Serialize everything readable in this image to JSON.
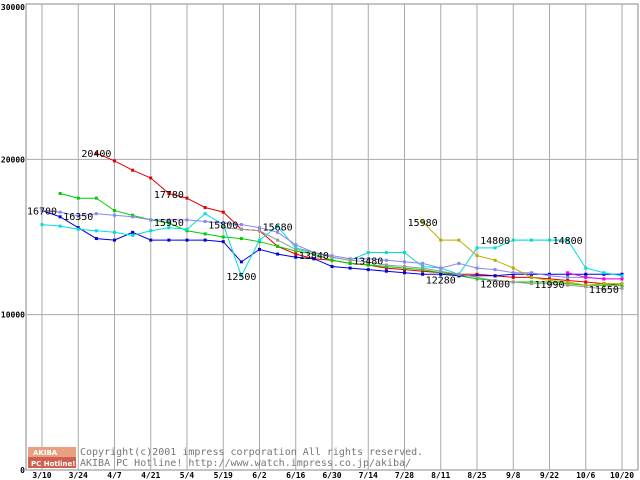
{
  "chart_data": {
    "type": "line",
    "title": "",
    "xlabel": "",
    "ylabel": "",
    "ylim": [
      0,
      30000
    ],
    "y_ticks": [
      0,
      10000,
      20000,
      30000
    ],
    "x": [
      "3/10",
      "3/17",
      "3/24",
      "3/31",
      "4/7",
      "4/14",
      "4/21",
      "4/28",
      "5/4",
      "5/12",
      "5/19",
      "5/26",
      "6/2",
      "6/9",
      "6/16",
      "6/23",
      "6/30",
      "7/7",
      "7/14",
      "7/21",
      "7/28",
      "8/4",
      "8/11",
      "8/18",
      "8/25",
      "9/1",
      "9/8",
      "9/15",
      "9/22",
      "9/29",
      "10/6",
      "10/13",
      "10/20"
    ],
    "x_tick_labels": [
      "3/10",
      "3/24",
      "4/7",
      "4/21",
      "5/4",
      "5/19",
      "6/2",
      "6/16",
      "6/30",
      "7/14",
      "7/28",
      "8/11",
      "8/25",
      "9/8",
      "9/22",
      "10/6",
      "10/20"
    ],
    "grid": true,
    "series": [
      {
        "name": "red",
        "color": "#e00000",
        "dashed": false,
        "values": [
          null,
          null,
          null,
          20400,
          19900,
          19300,
          18800,
          17800,
          17500,
          16900,
          16600,
          15500,
          15400,
          14400,
          13900,
          13600,
          13500,
          13300,
          13200,
          13000,
          12900,
          12800,
          12700,
          12600,
          12600,
          12500,
          12400,
          12400,
          12300,
          12200,
          12100,
          12000,
          11900
        ]
      },
      {
        "name": "green",
        "color": "#00cc00",
        "dashed": false,
        "values": [
          null,
          17800,
          17500,
          17500,
          16700,
          16400,
          16100,
          15900,
          15400,
          15200,
          15000,
          14900,
          14700,
          14400,
          14100,
          13900,
          13500,
          13300,
          13200,
          13100,
          13000,
          12900,
          12700,
          12500,
          12300,
          12200,
          12100,
          12100,
          12100,
          12000,
          11900,
          11900,
          11900
        ]
      },
      {
        "name": "blue",
        "color": "#0000dd",
        "dashed": false,
        "values": [
          16700,
          16300,
          15600,
          14900,
          14800,
          15300,
          14800,
          14800,
          14800,
          14800,
          14700,
          13400,
          14200,
          13900,
          13700,
          13600,
          13100,
          13000,
          12900,
          12800,
          12700,
          12600,
          12600,
          12500,
          12500,
          12500,
          12600,
          12600,
          12600,
          12600,
          12600,
          12600,
          12600
        ]
      },
      {
        "name": "cyan",
        "color": "#00dddd",
        "dashed": false,
        "values": [
          15800,
          15700,
          15500,
          15400,
          15300,
          15100,
          15400,
          15600,
          15500,
          16500,
          15800,
          12500,
          14800,
          15680,
          14300,
          14000,
          13700,
          13500,
          14000,
          14000,
          14000,
          13100,
          13000,
          12600,
          14300,
          14300,
          14800,
          14800,
          14800,
          14800,
          13000,
          12700,
          12500
        ]
      },
      {
        "name": "cyan-dotted",
        "color": "#00cccc",
        "dashed": true,
        "values": [
          null,
          null,
          null,
          null,
          null,
          null,
          null,
          null,
          null,
          null,
          null,
          null,
          null,
          null,
          null,
          null,
          null,
          null,
          null,
          null,
          null,
          null,
          null,
          null,
          null,
          null,
          14800,
          14800,
          14800,
          14800,
          null,
          null,
          null
        ]
      },
      {
        "name": "lavender",
        "color": "#8888ee",
        "dashed": false,
        "values": [
          16700,
          16600,
          16350,
          16500,
          16400,
          16300,
          16100,
          16100,
          16100,
          16000,
          15900,
          15800,
          15600,
          15300,
          14500,
          14000,
          13800,
          13600,
          13600,
          13500,
          13400,
          13300,
          13000,
          13300,
          13000,
          12900,
          12700,
          12700,
          12500,
          12400,
          12400,
          12300,
          12300
        ]
      },
      {
        "name": "olive",
        "color": "#bbaa00",
        "dashed": false,
        "values": [
          null,
          null,
          null,
          null,
          null,
          null,
          null,
          null,
          null,
          null,
          null,
          null,
          null,
          null,
          null,
          null,
          null,
          null,
          null,
          null,
          null,
          15980,
          14800,
          14800,
          13800,
          13500,
          13000,
          12400,
          12200,
          12100,
          11900,
          12000,
          12000
        ]
      },
      {
        "name": "gray",
        "color": "#999999",
        "dashed": false,
        "values": [
          null,
          null,
          null,
          null,
          null,
          null,
          null,
          null,
          null,
          null,
          15600,
          15500,
          15400,
          14800,
          14200,
          14000,
          13700,
          13500,
          13400,
          13200,
          13100,
          13000,
          12800,
          12600,
          12400,
          12200,
          12100,
          12000,
          11990,
          11900,
          11800,
          11650,
          11700
        ]
      },
      {
        "name": "magenta",
        "color": "#ee00ee",
        "dashed": false,
        "values": [
          null,
          null,
          null,
          null,
          null,
          null,
          null,
          null,
          null,
          null,
          null,
          null,
          null,
          null,
          null,
          null,
          null,
          null,
          null,
          null,
          null,
          null,
          null,
          null,
          null,
          null,
          null,
          null,
          null,
          12700,
          12400,
          12300,
          12300
        ]
      }
    ],
    "annotations": [
      {
        "text": "20400",
        "x": "3/31",
        "y": 20400
      },
      {
        "text": "17780",
        "x": "4/28",
        "y": 17780
      },
      {
        "text": "16700",
        "x": "3/10",
        "y": 16700
      },
      {
        "text": "16350",
        "x": "3/24",
        "y": 16350
      },
      {
        "text": "15950",
        "x": "4/28",
        "y": 15950
      },
      {
        "text": "15800",
        "x": "5/19",
        "y": 15800
      },
      {
        "text": "15680",
        "x": "6/9",
        "y": 15680
      },
      {
        "text": "12500",
        "x": "5/26",
        "y": 12500
      },
      {
        "text": "13840",
        "x": "6/23",
        "y": 13840
      },
      {
        "text": "13480",
        "x": "7/14",
        "y": 13480
      },
      {
        "text": "15980",
        "x": "8/4",
        "y": 15980
      },
      {
        "text": "12280",
        "x": "8/11",
        "y": 12280
      },
      {
        "text": "14800",
        "x": "9/1",
        "y": 14800
      },
      {
        "text": "12000",
        "x": "9/1",
        "y": 12000
      },
      {
        "text": "14800",
        "x": "9/29",
        "y": 14800
      },
      {
        "text": "11990",
        "x": "9/22",
        "y": 11990
      },
      {
        "text": "11650",
        "x": "10/13",
        "y": 11650
      }
    ]
  },
  "footer": {
    "logo_top": "AKIBA",
    "logo_bottom": "PC Hotline!",
    "copyright": "Copyright(c)2001 impress corporation All rights reserved.",
    "credit": "AKIBA PC Hotline!  http://www.watch.impress.co.jp/akiba/"
  }
}
